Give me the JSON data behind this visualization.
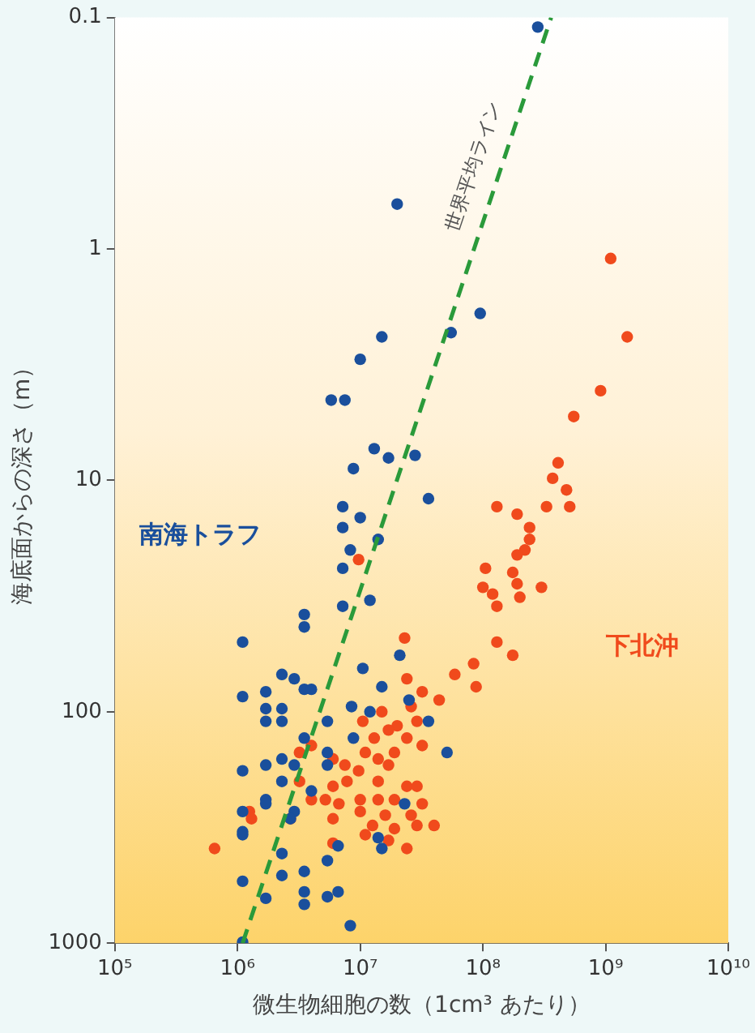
{
  "chart_data": {
    "type": "scatter",
    "xlabel": "微生物細胞の数（1cm³ あたり）",
    "ylabel": "海底面からの深さ（m）",
    "xlim": [
      100000,
      10000000000
    ],
    "ylim": [
      1000,
      0.1
    ],
    "xticks": [
      {
        "value": 100000,
        "label": "10⁵"
      },
      {
        "value": 1000000,
        "label": "10⁶"
      },
      {
        "value": 10000000,
        "label": "10⁷"
      },
      {
        "value": 100000000,
        "label": "10⁸"
      },
      {
        "value": 1000000000,
        "label": "10⁹"
      },
      {
        "value": 10000000000,
        "label": "10¹⁰"
      }
    ],
    "yticks": [
      0.1,
      1,
      10,
      100,
      1000
    ],
    "log": "xy",
    "grid": false,
    "legend": false,
    "marker": "circle",
    "series": [
      {
        "name": "南海トラフ",
        "color": "#1a4f9c",
        "x": [
          280000000.0,
          20000000.0,
          95000000.0,
          55000000.0,
          15000000.0,
          10000000.0,
          5800000.0,
          7500000.0,
          13000000.0,
          17000000.0,
          28000000.0,
          8800000.0,
          7200000.0,
          10000000.0,
          7200000.0,
          14000000.0,
          8300000.0,
          7200000.0,
          12000000.0,
          7200000.0,
          3500000.0,
          3500000.0,
          1100000.0,
          36000000.0,
          21000000.0,
          10500000.0,
          2300000.0,
          2900000.0,
          3500000.0,
          4000000.0,
          1100000.0,
          1700000.0,
          15000000.0,
          1700000.0,
          2300000.0,
          1700000.0,
          2300000.0,
          8500000.0,
          12000000.0,
          25000000.0,
          36000000.0,
          5400000.0,
          3500000.0,
          8800000.0,
          51000000.0,
          5400000.0,
          1100000.0,
          1700000.0,
          2300000.0,
          2900000.0,
          5400000.0,
          2300000.0,
          4000000.0,
          1100000.0,
          1700000.0,
          1700000.0,
          2900000.0,
          1100000.0,
          2700000.0,
          1100000.0,
          23000000.0,
          14000000.0,
          15000000.0,
          6600000.0,
          2300000.0,
          5400000.0,
          1100000.0,
          2300000.0,
          3500000.0,
          1700000.0,
          3500000.0,
          3500000.0,
          5400000.0,
          6600000.0,
          8300000.0,
          1100000.0
        ],
        "values": [
          0.11,
          0.64,
          1.9,
          2.3,
          2.4,
          3.0,
          4.5,
          4.5,
          7.3,
          8.0,
          7.8,
          8.9,
          13,
          14.5,
          16,
          18,
          20,
          24,
          33,
          35,
          38,
          43,
          50,
          12,
          57,
          65,
          69,
          72,
          80,
          80,
          86,
          82,
          78,
          97,
          97,
          110,
          110,
          95,
          100,
          89,
          110,
          110,
          130,
          130,
          150,
          150,
          180,
          170,
          160,
          170,
          170,
          200,
          220,
          270,
          240,
          250,
          270,
          330,
          290,
          340,
          250,
          350,
          390,
          380,
          410,
          440,
          540,
          510,
          490,
          640,
          600,
          680,
          630,
          600,
          840,
          990
        ]
      },
      {
        "name": "下北沖",
        "color": "#f04a1c",
        "x": [
          1100000000.0,
          1500000000.0,
          910000000.0,
          550000000.0,
          410000000.0,
          370000000.0,
          130000000.0,
          330000000.0,
          510000000.0,
          480000000.0,
          190000000.0,
          240000000.0,
          240000000.0,
          220000000.0,
          190000000.0,
          9700000.0,
          105000000.0,
          175000000.0,
          190000000.0,
          300000000.0,
          100000000.0,
          120000000.0,
          200000000.0,
          130000000.0,
          130000000.0,
          175000000.0,
          84000000.0,
          59000000.0,
          88000000.0,
          23000000.0,
          24000000.0,
          32000000.0,
          44000000.0,
          26000000.0,
          29000000.0,
          20000000.0,
          10500000.0,
          15000000.0,
          32000000.0,
          24000000.0,
          17000000.0,
          13000000.0,
          11000000.0,
          19000000.0,
          14000000.0,
          6000000.0,
          7500000.0,
          9700000.0,
          17000000.0,
          3200000.0,
          4000000.0,
          3200000.0,
          6000000.0,
          7800000.0,
          14000000.0,
          24000000.0,
          29000000.0,
          4000000.0,
          5200000.0,
          6700000.0,
          10000000.0,
          14000000.0,
          19000000.0,
          32000000.0,
          10000000.0,
          16000000.0,
          26000000.0,
          6000000.0,
          1250000.0,
          1300000.0,
          2700000.0,
          12600000.0,
          19000000.0,
          29000000.0,
          40000000.0,
          11000000.0,
          17000000.0,
          24000000.0,
          6000000.0,
          650000.0
        ],
        "values": [
          1.1,
          2.4,
          4.1,
          5.3,
          8.4,
          9.8,
          13,
          13,
          13,
          11,
          14,
          16,
          18,
          20,
          21,
          22,
          24,
          25,
          28,
          29,
          29,
          31,
          32,
          35,
          50,
          57,
          62,
          69,
          78,
          48,
          72,
          82,
          89,
          95,
          110,
          115,
          110,
          100,
          140,
          130,
          120,
          130,
          150,
          150,
          160,
          160,
          170,
          180,
          170,
          150,
          140,
          200,
          210,
          200,
          200,
          210,
          210,
          240,
          240,
          250,
          240,
          240,
          240,
          250,
          270,
          280,
          280,
          290,
          270,
          290,
          290,
          310,
          320,
          310,
          310,
          340,
          360,
          390,
          370,
          390
        ]
      },
      {
        "name": "世界平均ライン",
        "type": "line",
        "color": "#2a9a3a",
        "line_style": "dashed",
        "marker": "none",
        "x": [
          1100000.0,
          360000000.0
        ],
        "values": [
          1000,
          0.1
        ]
      }
    ]
  }
}
